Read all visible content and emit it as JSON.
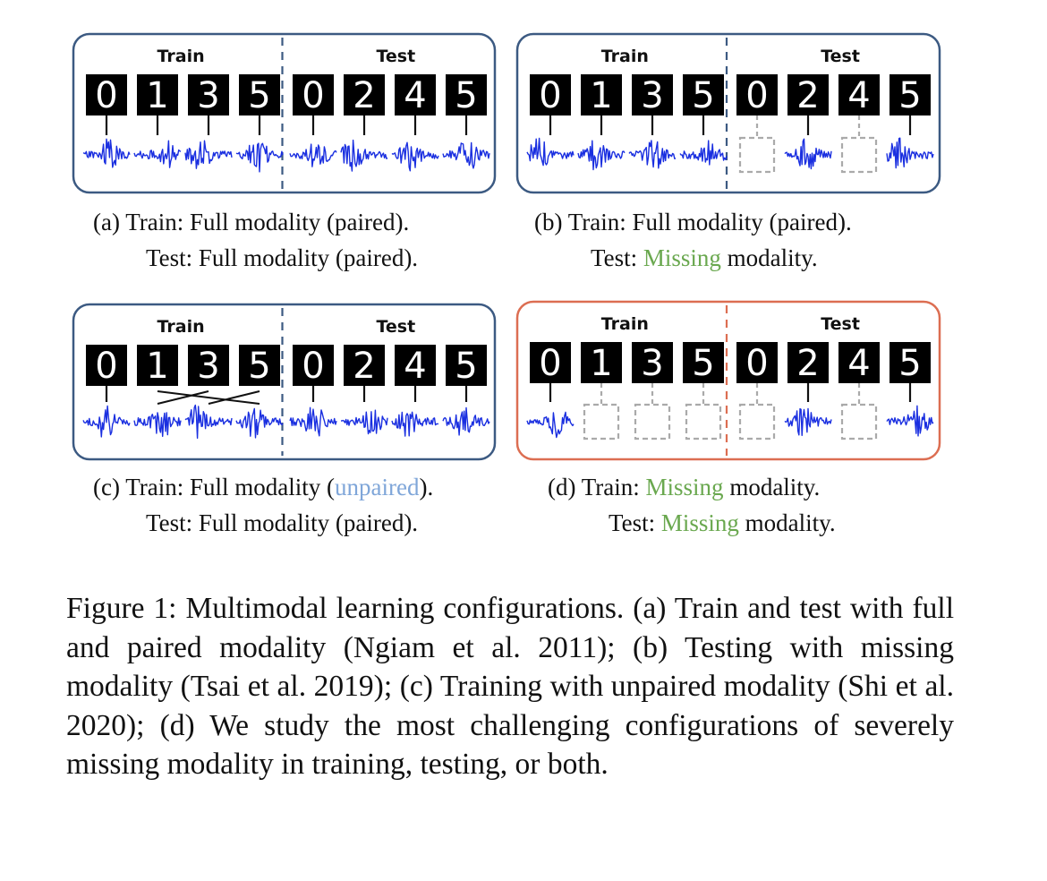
{
  "split_labels": {
    "train": "Train",
    "test": "Test"
  },
  "colors": {
    "panel_border": "#3c5a82",
    "panel_border_highlight": "#dc6e52",
    "waveform": "#1a2fe0",
    "missing": "#aaaaaa",
    "missing_text": "#6aa84f",
    "unpaired_text": "#7fa6d9"
  },
  "digits": {
    "train": [
      "0",
      "1",
      "3",
      "5"
    ],
    "test": [
      "0",
      "2",
      "4",
      "5"
    ]
  },
  "panels": [
    {
      "id": "a",
      "highlight": false,
      "pairs": [
        {
          "wave": true,
          "link": "solid"
        },
        {
          "wave": true,
          "link": "solid"
        },
        {
          "wave": true,
          "link": "solid"
        },
        {
          "wave": true,
          "link": "solid"
        },
        {
          "wave": true,
          "link": "solid"
        },
        {
          "wave": true,
          "link": "solid"
        },
        {
          "wave": true,
          "link": "solid"
        },
        {
          "wave": true,
          "link": "solid"
        }
      ],
      "caption": {
        "line1_prefix": "(a) Train: ",
        "line1_mid": "Full modality (paired).",
        "line2_prefix": "Test: ",
        "line2_mid": "Full modality (paired)."
      }
    },
    {
      "id": "b",
      "highlight": false,
      "pairs": [
        {
          "wave": true,
          "link": "solid"
        },
        {
          "wave": true,
          "link": "solid"
        },
        {
          "wave": true,
          "link": "solid"
        },
        {
          "wave": true,
          "link": "solid"
        },
        {
          "wave": false,
          "link": "dashed"
        },
        {
          "wave": true,
          "link": "solid"
        },
        {
          "wave": false,
          "link": "dashed"
        },
        {
          "wave": true,
          "link": "solid"
        }
      ],
      "caption": {
        "line1_prefix": "(b) Train: ",
        "line1_mid": "Full modality (paired).",
        "line2_prefix": "Test: ",
        "line2_hl": "Missing",
        "line2_rest": " modality."
      }
    },
    {
      "id": "c",
      "highlight": false,
      "unpaired_train": true,
      "pairs": [
        {
          "wave": true,
          "link": "solid"
        },
        {
          "wave": true,
          "link": "cross"
        },
        {
          "wave": true,
          "link": "cross"
        },
        {
          "wave": true,
          "link": "cross"
        },
        {
          "wave": true,
          "link": "solid"
        },
        {
          "wave": true,
          "link": "solid"
        },
        {
          "wave": true,
          "link": "solid"
        },
        {
          "wave": true,
          "link": "solid"
        }
      ],
      "caption": {
        "line1_prefix": "(c) Train: Full modality (",
        "line1_hl": "unpaired",
        "line1_rest": ").",
        "line2_prefix": "Test: ",
        "line2_mid": "Full modality (paired)."
      }
    },
    {
      "id": "d",
      "highlight": true,
      "pairs": [
        {
          "wave": true,
          "link": "solid"
        },
        {
          "wave": false,
          "link": "dashed"
        },
        {
          "wave": false,
          "link": "dashed"
        },
        {
          "wave": false,
          "link": "dashed"
        },
        {
          "wave": false,
          "link": "dashed"
        },
        {
          "wave": true,
          "link": "solid"
        },
        {
          "wave": false,
          "link": "dashed"
        },
        {
          "wave": true,
          "link": "solid"
        }
      ],
      "caption": {
        "line1_prefix": "(d) Train: ",
        "line1_hl": "Missing",
        "line1_rest": " modality.",
        "line2_prefix": "Test: ",
        "line2_hl": "Missing",
        "line2_rest": " modality."
      }
    }
  ],
  "figure_caption": "Figure 1: Multimodal learning configurations. (a) Train and test with full and paired modality (Ngiam et al. 2011); (b) Testing with missing modality (Tsai et al. 2019); (c) Training with unpaired modality (Shi et al. 2020); (d) We study the most challenging configurations of severely missing modality in training, testing, or both."
}
